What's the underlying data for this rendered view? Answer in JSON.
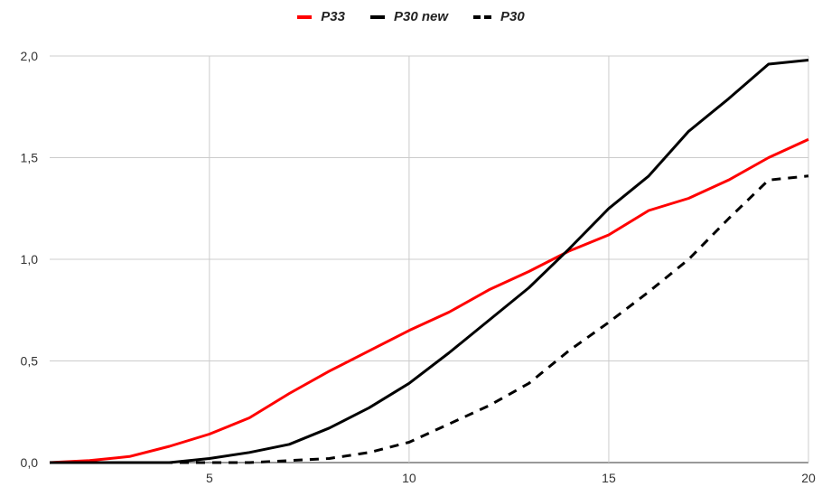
{
  "chart_data": {
    "type": "line",
    "title": "",
    "xlabel": "",
    "ylabel": "",
    "x": [
      1,
      2,
      3,
      4,
      5,
      6,
      7,
      8,
      9,
      10,
      11,
      12,
      13,
      14,
      15,
      16,
      17,
      18,
      19,
      20
    ],
    "xlim": [
      1,
      20
    ],
    "ylim": [
      0,
      2
    ],
    "x_ticks": [
      5,
      10,
      15,
      20
    ],
    "x_tick_labels": [
      "5",
      "10",
      "15",
      "20"
    ],
    "y_ticks": [
      0,
      0.5,
      1,
      1.5,
      2
    ],
    "y_tick_labels": [
      "0,0",
      "0,5",
      "1,0",
      "1,5",
      "2,0"
    ],
    "grid": "vertical and horizontal",
    "legend_position": "top",
    "series": [
      {
        "name": "P33",
        "color": "#ff0000",
        "dash": "solid",
        "values": [
          0,
          0.01,
          0.03,
          0.08,
          0.14,
          0.22,
          0.34,
          0.45,
          0.55,
          0.65,
          0.74,
          0.85,
          0.94,
          1.04,
          1.12,
          1.24,
          1.3,
          1.39,
          1.5,
          1.59
        ]
      },
      {
        "name": "P30 new",
        "color": "#000000",
        "dash": "solid",
        "values": [
          0,
          0,
          0,
          0,
          0.02,
          0.05,
          0.09,
          0.17,
          0.27,
          0.39,
          0.54,
          0.7,
          0.86,
          1.05,
          1.25,
          1.41,
          1.63,
          1.79,
          1.96,
          1.98
        ]
      },
      {
        "name": "P30",
        "color": "#000000",
        "dash": "dashed",
        "values": [
          0,
          0,
          0,
          0,
          0,
          0,
          0.01,
          0.02,
          0.05,
          0.1,
          0.19,
          0.28,
          0.39,
          0.55,
          0.69,
          0.84,
          1.0,
          1.2,
          1.39,
          1.41
        ]
      }
    ]
  }
}
